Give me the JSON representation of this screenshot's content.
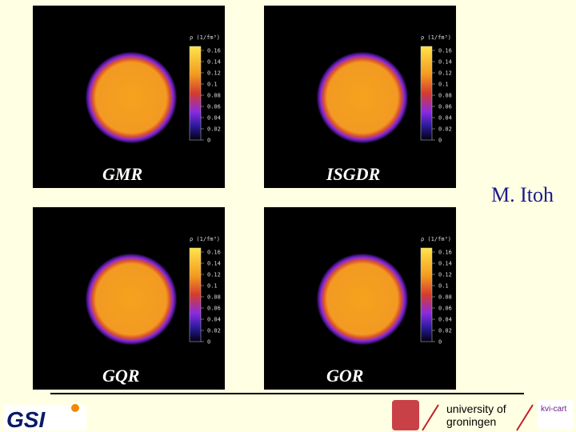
{
  "panels": [
    {
      "title": "GMR",
      "colorbar_label": "ρ (1/fm³)",
      "colorbar_ticks": [
        "0.16",
        "0.14",
        "0.12",
        "0.1",
        "0.08",
        "0.06",
        "0.04",
        "0.02",
        "0"
      ]
    },
    {
      "title": "ISGDR",
      "colorbar_label": "ρ (1/fm³)",
      "colorbar_ticks": [
        "0.16",
        "0.14",
        "0.12",
        "0.1",
        "0.08",
        "0.06",
        "0.04",
        "0.02",
        "0"
      ]
    },
    {
      "title": "GQR",
      "colorbar_label": "ρ (1/fm³)",
      "colorbar_ticks": [
        "0.16",
        "0.14",
        "0.12",
        "0.1",
        "0.08",
        "0.06",
        "0.04",
        "0.02",
        "0"
      ]
    },
    {
      "title": "GOR",
      "colorbar_label": "ρ (1/fm³)",
      "colorbar_ticks": [
        "0.16",
        "0.14",
        "0.12",
        "0.1",
        "0.08",
        "0.06",
        "0.04",
        "0.02",
        "0"
      ]
    }
  ],
  "author": "M. Itoh",
  "footer": {
    "logo_left": "GSI",
    "university": [
      "university of",
      "groningen"
    ],
    "logo_right": "kvi-cart"
  }
}
